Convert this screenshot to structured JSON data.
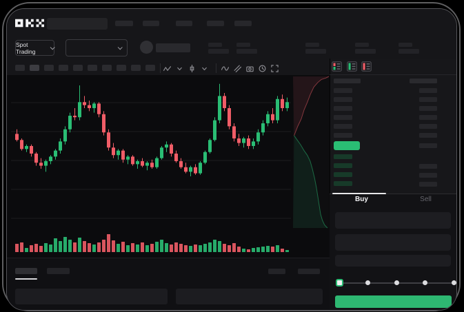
{
  "header": {
    "brand": "OKX",
    "nav_placeholder_count": 5
  },
  "market_bar": {
    "market_type_label": "Spot Trading",
    "stat_group_count": 5
  },
  "chart_toolbar": {
    "timeframe_slot_count": 10,
    "active_timeframe_index": 1,
    "icons": [
      "zigzag-icon",
      "chevron-down-icon",
      "interval-icon",
      "chevron-down-icon",
      "divider",
      "wave-icon",
      "draw-icon",
      "camera-icon",
      "history-icon",
      "fullscreen-icon"
    ]
  },
  "order_book": {
    "view_mode_icons": [
      "book-all-icon",
      "book-bids-icon",
      "book-asks-icon"
    ],
    "ask_row_count": 6,
    "bid_row_count": 4,
    "last_price_color": "#2abd74"
  },
  "trade_panel": {
    "tabs": [
      {
        "label": "Buy",
        "active": true
      },
      {
        "label": "Sell",
        "active": false
      }
    ],
    "field_count": 3,
    "slider_stop_count": 5,
    "buy_button_color": "#2eb872"
  },
  "bottom_bar": {
    "tab_count": 2,
    "active_tab_index": 0
  },
  "chart_data": {
    "type": "candlestick",
    "title": "",
    "up_color": "#2abd74",
    "down_color": "#f05d67",
    "grid": true,
    "legend_position": "none",
    "value_range": [
      0,
      100
    ],
    "candles_ohlc": [
      [
        63,
        66,
        58,
        59
      ],
      [
        59,
        60,
        52,
        53
      ],
      [
        53,
        56,
        51,
        55
      ],
      [
        55,
        56,
        48,
        50
      ],
      [
        50,
        51,
        42,
        44
      ],
      [
        44,
        47,
        40,
        42
      ],
      [
        42,
        46,
        38,
        45
      ],
      [
        45,
        49,
        43,
        48
      ],
      [
        48,
        53,
        46,
        52
      ],
      [
        52,
        60,
        50,
        58
      ],
      [
        58,
        68,
        56,
        66
      ],
      [
        66,
        77,
        64,
        75
      ],
      [
        75,
        80,
        72,
        74
      ],
      [
        74,
        95,
        72,
        84
      ],
      [
        84,
        88,
        80,
        82
      ],
      [
        82,
        85,
        78,
        80
      ],
      [
        80,
        84,
        77,
        83
      ],
      [
        83,
        84,
        74,
        76
      ],
      [
        76,
        78,
        62,
        64
      ],
      [
        64,
        66,
        52,
        54
      ],
      [
        54,
        57,
        47,
        49
      ],
      [
        49,
        53,
        46,
        52
      ],
      [
        52,
        53,
        44,
        46
      ],
      [
        46,
        49,
        43,
        48
      ],
      [
        48,
        49,
        42,
        43
      ],
      [
        43,
        46,
        40,
        45
      ],
      [
        45,
        47,
        41,
        42
      ],
      [
        42,
        45,
        39,
        44
      ],
      [
        44,
        46,
        40,
        41
      ],
      [
        41,
        48,
        40,
        47
      ],
      [
        47,
        55,
        46,
        54
      ],
      [
        54,
        58,
        51,
        56
      ],
      [
        56,
        57,
        48,
        50
      ],
      [
        50,
        52,
        44,
        45
      ],
      [
        45,
        47,
        40,
        41
      ],
      [
        41,
        44,
        37,
        38
      ],
      [
        38,
        42,
        35,
        41
      ],
      [
        41,
        43,
        36,
        37
      ],
      [
        37,
        45,
        36,
        44
      ],
      [
        44,
        52,
        43,
        51
      ],
      [
        51,
        60,
        50,
        59
      ],
      [
        59,
        74,
        58,
        72
      ],
      [
        72,
        96,
        70,
        88
      ],
      [
        88,
        90,
        78,
        80
      ],
      [
        80,
        82,
        66,
        68
      ],
      [
        68,
        70,
        58,
        60
      ],
      [
        60,
        63,
        55,
        57
      ],
      [
        57,
        61,
        54,
        60
      ],
      [
        60,
        62,
        53,
        55
      ],
      [
        55,
        60,
        53,
        58
      ],
      [
        58,
        66,
        56,
        64
      ],
      [
        64,
        72,
        62,
        70
      ],
      [
        70,
        78,
        68,
        76
      ],
      [
        76,
        80,
        70,
        72
      ],
      [
        72,
        88,
        70,
        86
      ],
      [
        86,
        89,
        78,
        80
      ],
      [
        80,
        87,
        78,
        84
      ]
    ],
    "volumes": [
      12,
      14,
      6,
      10,
      12,
      9,
      13,
      11,
      20,
      16,
      22,
      18,
      14,
      21,
      16,
      13,
      11,
      14,
      18,
      26,
      17,
      12,
      15,
      10,
      13,
      11,
      14,
      10,
      12,
      15,
      18,
      13,
      11,
      14,
      12,
      10,
      9,
      11,
      10,
      12,
      14,
      18,
      16,
      12,
      10,
      13,
      8,
      5,
      4,
      6,
      7,
      8,
      9,
      8,
      10,
      5,
      3
    ],
    "depth": {
      "asks": [
        [
          0.03,
          0.39
        ],
        [
          0.13,
          0.33
        ],
        [
          0.23,
          0.28
        ],
        [
          0.31,
          0.22
        ],
        [
          0.4,
          0.17
        ],
        [
          0.48,
          0.12
        ],
        [
          0.58,
          0.07
        ],
        [
          0.69,
          0.04
        ],
        [
          0.79,
          0.02
        ],
        [
          0.92,
          0.01
        ],
        [
          1.0,
          0.0
        ]
      ],
      "bids": [
        [
          0.03,
          0.39
        ],
        [
          0.12,
          0.42
        ],
        [
          0.21,
          0.45
        ],
        [
          0.31,
          0.49
        ],
        [
          0.4,
          0.52
        ],
        [
          0.48,
          0.56
        ],
        [
          0.54,
          0.61
        ],
        [
          0.6,
          0.67
        ],
        [
          0.65,
          0.73
        ],
        [
          0.69,
          0.79
        ],
        [
          0.73,
          0.85
        ],
        [
          0.77,
          0.91
        ],
        [
          0.82,
          0.95
        ],
        [
          0.88,
          0.98
        ],
        [
          0.96,
          1.0
        ]
      ]
    }
  }
}
